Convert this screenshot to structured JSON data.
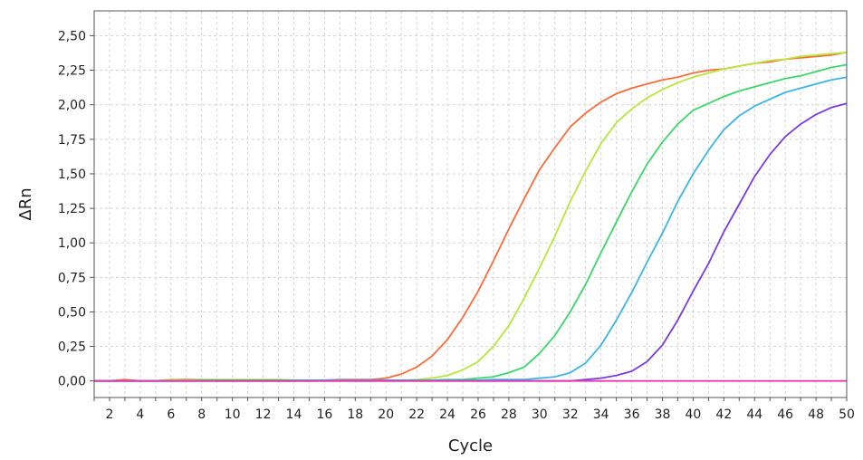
{
  "chart_data": {
    "type": "line",
    "xlabel": "Cycle",
    "ylabel": "ΔRn",
    "xlim": [
      1,
      50
    ],
    "ylim": [
      -0.12,
      2.68
    ],
    "grid": true,
    "legend": "none",
    "x_ticks": [
      2,
      4,
      6,
      8,
      10,
      12,
      14,
      16,
      18,
      20,
      22,
      24,
      26,
      28,
      30,
      32,
      34,
      36,
      38,
      40,
      42,
      44,
      46,
      48,
      50
    ],
    "x_tick_labels": [
      "2",
      "4",
      "6",
      "8",
      "10",
      "12",
      "14",
      "16",
      "18",
      "20",
      "22",
      "24",
      "26",
      "28",
      "30",
      "32",
      "34",
      "36",
      "38",
      "40",
      "42",
      "44",
      "46",
      "48",
      "50"
    ],
    "y_ticks": [
      0,
      0.25,
      0.5,
      0.75,
      1.0,
      1.25,
      1.5,
      1.75,
      2.0,
      2.25,
      2.5
    ],
    "y_tick_labels": [
      "0,00",
      "0,25",
      "0,50",
      "0,75",
      "1,00",
      "1,25",
      "1,50",
      "1,75",
      "2,00",
      "2,25",
      "2,50"
    ],
    "series": [
      {
        "color": "#ff6a3a",
        "x": [
          1,
          2,
          3,
          4,
          5,
          6,
          7,
          8,
          9,
          10,
          11,
          12,
          13,
          14,
          15,
          16,
          17,
          18,
          19,
          20,
          21,
          22,
          23,
          24,
          25,
          26,
          27,
          28,
          29,
          30,
          31,
          32,
          33,
          34,
          35,
          36,
          37,
          38,
          39,
          40,
          41,
          42,
          43,
          44,
          45,
          46,
          47,
          48,
          49,
          50
        ],
        "y": [
          0,
          0,
          0.01,
          0,
          0,
          0.01,
          0.01,
          0.01,
          0,
          0,
          0,
          0,
          0,
          0,
          0,
          0.005,
          0.01,
          0.01,
          0.01,
          0.02,
          0.05,
          0.1,
          0.18,
          0.3,
          0.46,
          0.65,
          0.87,
          1.1,
          1.32,
          1.53,
          1.69,
          1.84,
          1.94,
          2.02,
          2.08,
          2.12,
          2.15,
          2.18,
          2.2,
          2.23,
          2.25,
          2.26,
          2.28,
          2.3,
          2.31,
          2.33,
          2.34,
          2.35,
          2.36,
          2.38
        ]
      },
      {
        "color": "#b8e63a",
        "x": [
          1,
          2,
          3,
          4,
          5,
          6,
          7,
          8,
          9,
          10,
          11,
          12,
          13,
          14,
          15,
          16,
          17,
          18,
          19,
          20,
          21,
          22,
          23,
          24,
          25,
          26,
          27,
          28,
          29,
          30,
          31,
          32,
          33,
          34,
          35,
          36,
          37,
          38,
          39,
          40,
          41,
          42,
          43,
          44,
          45,
          46,
          47,
          48,
          49,
          50
        ],
        "y": [
          0,
          0,
          0,
          0,
          0,
          0.01,
          0.005,
          0.01,
          0.01,
          0.01,
          0.01,
          0.01,
          0.01,
          0.005,
          0.005,
          0.005,
          0.005,
          0.005,
          0.005,
          0.005,
          0.005,
          0.01,
          0.02,
          0.04,
          0.08,
          0.14,
          0.25,
          0.4,
          0.6,
          0.82,
          1.05,
          1.3,
          1.52,
          1.72,
          1.87,
          1.97,
          2.05,
          2.11,
          2.16,
          2.2,
          2.23,
          2.26,
          2.28,
          2.3,
          2.32,
          2.33,
          2.35,
          2.36,
          2.37,
          2.38
        ]
      },
      {
        "color": "#3ad86a",
        "x": [
          1,
          2,
          3,
          4,
          5,
          6,
          7,
          8,
          9,
          10,
          11,
          12,
          13,
          14,
          15,
          16,
          17,
          18,
          19,
          20,
          21,
          22,
          23,
          24,
          25,
          26,
          27,
          28,
          29,
          30,
          31,
          32,
          33,
          34,
          35,
          36,
          37,
          38,
          39,
          40,
          41,
          42,
          43,
          44,
          45,
          46,
          47,
          48,
          49,
          50
        ],
        "y": [
          0,
          0,
          0,
          0,
          0,
          0,
          0,
          0.005,
          0.005,
          0.005,
          0.005,
          0.005,
          0.005,
          0.005,
          0.005,
          0.005,
          0.005,
          0.005,
          0.005,
          0.005,
          0.005,
          0.005,
          0.005,
          0.01,
          0.01,
          0.02,
          0.03,
          0.06,
          0.1,
          0.2,
          0.33,
          0.5,
          0.7,
          0.93,
          1.15,
          1.37,
          1.57,
          1.73,
          1.86,
          1.96,
          2.01,
          2.06,
          2.1,
          2.13,
          2.16,
          2.19,
          2.21,
          2.24,
          2.27,
          2.29
        ]
      },
      {
        "color": "#3ab6e6",
        "x": [
          1,
          2,
          3,
          4,
          5,
          6,
          7,
          8,
          9,
          10,
          11,
          12,
          13,
          14,
          15,
          16,
          17,
          18,
          19,
          20,
          21,
          22,
          23,
          24,
          25,
          26,
          27,
          28,
          29,
          30,
          31,
          32,
          33,
          34,
          35,
          36,
          37,
          38,
          39,
          40,
          41,
          42,
          43,
          44,
          45,
          46,
          47,
          48,
          49,
          50
        ],
        "y": [
          0,
          0,
          0,
          0,
          0,
          0,
          0,
          0,
          0,
          0,
          0,
          0,
          0,
          0,
          0.005,
          0.005,
          0.005,
          0.005,
          0.005,
          0.005,
          0.005,
          0.005,
          0.005,
          0.005,
          0.005,
          0.005,
          0.01,
          0.01,
          0.01,
          0.02,
          0.03,
          0.06,
          0.13,
          0.26,
          0.44,
          0.64,
          0.86,
          1.07,
          1.3,
          1.5,
          1.67,
          1.82,
          1.92,
          1.99,
          2.04,
          2.09,
          2.12,
          2.15,
          2.18,
          2.2
        ]
      },
      {
        "color": "#7a3ae6",
        "x": [
          1,
          2,
          3,
          4,
          5,
          6,
          7,
          8,
          9,
          10,
          11,
          12,
          13,
          14,
          15,
          16,
          17,
          18,
          19,
          20,
          21,
          22,
          23,
          24,
          25,
          26,
          27,
          28,
          29,
          30,
          31,
          32,
          33,
          34,
          35,
          36,
          37,
          38,
          39,
          40,
          41,
          42,
          43,
          44,
          45,
          46,
          47,
          48,
          49,
          50
        ],
        "y": [
          0,
          0,
          0,
          0,
          0,
          0,
          0,
          0,
          0,
          0,
          0,
          0,
          0,
          0,
          0,
          0,
          0,
          0,
          0,
          0,
          0,
          0,
          0,
          0,
          0,
          0,
          0,
          0,
          0,
          0,
          0,
          0,
          0.01,
          0.02,
          0.04,
          0.07,
          0.14,
          0.26,
          0.44,
          0.65,
          0.85,
          1.08,
          1.28,
          1.48,
          1.64,
          1.77,
          1.86,
          1.93,
          1.98,
          2.01
        ]
      },
      {
        "color": "#e63ab0",
        "x": [
          1,
          2,
          3,
          4,
          5,
          6,
          7,
          8,
          9,
          10,
          11,
          12,
          13,
          14,
          15,
          16,
          17,
          18,
          19,
          20,
          21,
          22,
          23,
          24,
          25,
          26,
          27,
          28,
          29,
          30,
          31,
          32,
          33,
          34,
          35,
          36,
          37,
          38,
          39,
          40,
          41,
          42,
          43,
          44,
          45,
          46,
          47,
          48,
          49,
          50
        ],
        "y": [
          0,
          0,
          0,
          0,
          0,
          0,
          0,
          0,
          0,
          0,
          0,
          0,
          0,
          0,
          0,
          0,
          0,
          0,
          0,
          0,
          0,
          0,
          0,
          0,
          0,
          0,
          0,
          0,
          0,
          0,
          0,
          0,
          0,
          0,
          0,
          0,
          0,
          0,
          0,
          0,
          0,
          0,
          0,
          0,
          0,
          0,
          0,
          0,
          0,
          0
        ]
      }
    ]
  }
}
